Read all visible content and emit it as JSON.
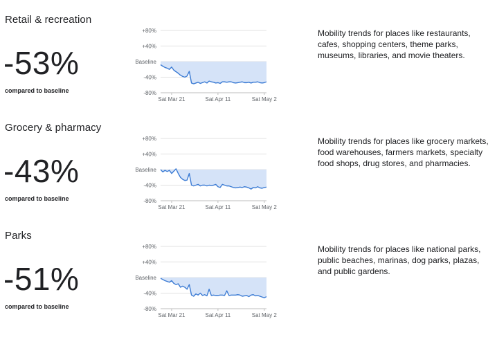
{
  "common": {
    "baseline_label": "compared to baseline",
    "y_ticks": [
      "+80%",
      "+40%",
      "Baseline",
      "-40%",
      "-80%"
    ],
    "x_ticks": [
      "Sat Mar 21",
      "Sat Apr 11",
      "Sat May 2"
    ],
    "line_color": "#3b7bd4",
    "fill_color": "#d5e3f8"
  },
  "sections": [
    {
      "title": "Retail & recreation",
      "value": "-53%",
      "description": "Mobility trends for places like restaurants, cafes, shopping centers, theme parks, museums, libraries, and movie theaters."
    },
    {
      "title": "Grocery & pharmacy",
      "value": "-43%",
      "description": "Mobility trends for places like grocery markets, food warehouses, farmers markets, specialty food shops, drug stores, and pharmacies."
    },
    {
      "title": "Parks",
      "value": "-51%",
      "description": "Mobility trends for places like national parks, public beaches, marinas, dog parks, plazas, and public gardens."
    }
  ],
  "chart_data": [
    {
      "type": "line",
      "title": "Retail & recreation",
      "ylim": [
        -80,
        80
      ],
      "x": [
        "Mar 16",
        "Mar 17",
        "Mar 18",
        "Mar 19",
        "Mar 20",
        "Mar 21",
        "Mar 22",
        "Mar 23",
        "Mar 24",
        "Mar 25",
        "Mar 26",
        "Mar 27",
        "Mar 28",
        "Mar 29",
        "Mar 30",
        "Mar 31",
        "Apr 1",
        "Apr 2",
        "Apr 3",
        "Apr 4",
        "Apr 5",
        "Apr 6",
        "Apr 7",
        "Apr 8",
        "Apr 9",
        "Apr 10",
        "Apr 11",
        "Apr 12",
        "Apr 13",
        "Apr 14",
        "Apr 15",
        "Apr 16",
        "Apr 17",
        "Apr 18",
        "Apr 19",
        "Apr 20",
        "Apr 21",
        "Apr 22",
        "Apr 23",
        "Apr 24",
        "Apr 25",
        "Apr 26",
        "Apr 27",
        "Apr 28",
        "Apr 29",
        "Apr 30",
        "May 1",
        "May 2",
        "May 3"
      ],
      "values": [
        -8,
        -12,
        -15,
        -17,
        -20,
        -14,
        -22,
        -26,
        -30,
        -35,
        -38,
        -40,
        -37,
        -25,
        -55,
        -57,
        -55,
        -53,
        -56,
        -54,
        -52,
        -55,
        -50,
        -52,
        -53,
        -55,
        -54,
        -56,
        -52,
        -52,
        -53,
        -52,
        -52,
        -54,
        -55,
        -54,
        -53,
        -52,
        -54,
        -54,
        -53,
        -55,
        -53,
        -53,
        -52,
        -54,
        -55,
        -54,
        -52
      ]
    },
    {
      "type": "line",
      "title": "Grocery & pharmacy",
      "ylim": [
        -80,
        80
      ],
      "x": [
        "Mar 16",
        "Mar 17",
        "Mar 18",
        "Mar 19",
        "Mar 20",
        "Mar 21",
        "Mar 22",
        "Mar 23",
        "Mar 24",
        "Mar 25",
        "Mar 26",
        "Mar 27",
        "Mar 28",
        "Mar 29",
        "Mar 30",
        "Mar 31",
        "Apr 1",
        "Apr 2",
        "Apr 3",
        "Apr 4",
        "Apr 5",
        "Apr 6",
        "Apr 7",
        "Apr 8",
        "Apr 9",
        "Apr 10",
        "Apr 11",
        "Apr 12",
        "Apr 13",
        "Apr 14",
        "Apr 15",
        "Apr 16",
        "Apr 17",
        "Apr 18",
        "Apr 19",
        "Apr 20",
        "Apr 21",
        "Apr 22",
        "Apr 23",
        "Apr 24",
        "Apr 25",
        "Apr 26",
        "Apr 27",
        "Apr 28",
        "Apr 29",
        "Apr 30",
        "May 1",
        "May 2",
        "May 3"
      ],
      "values": [
        0,
        -6,
        -2,
        -5,
        -2,
        -10,
        -4,
        2,
        -10,
        -20,
        -25,
        -28,
        -27,
        -10,
        -40,
        -42,
        -40,
        -38,
        -42,
        -40,
        -40,
        -42,
        -40,
        -41,
        -40,
        -38,
        -44,
        -46,
        -38,
        -40,
        -42,
        -42,
        -44,
        -46,
        -47,
        -46,
        -45,
        -46,
        -44,
        -45,
        -47,
        -50,
        -46,
        -47,
        -44,
        -47,
        -48,
        -46,
        -45
      ]
    },
    {
      "type": "line",
      "title": "Parks",
      "ylim": [
        -80,
        80
      ],
      "x": [
        "Mar 16",
        "Mar 17",
        "Mar 18",
        "Mar 19",
        "Mar 20",
        "Mar 21",
        "Mar 22",
        "Mar 23",
        "Mar 24",
        "Mar 25",
        "Mar 26",
        "Mar 27",
        "Mar 28",
        "Mar 29",
        "Mar 30",
        "Mar 31",
        "Apr 1",
        "Apr 2",
        "Apr 3",
        "Apr 4",
        "Apr 5",
        "Apr 6",
        "Apr 7",
        "Apr 8",
        "Apr 9",
        "Apr 10",
        "Apr 11",
        "Apr 12",
        "Apr 13",
        "Apr 14",
        "Apr 15",
        "Apr 16",
        "Apr 17",
        "Apr 18",
        "Apr 19",
        "Apr 20",
        "Apr 21",
        "Apr 22",
        "Apr 23",
        "Apr 24",
        "Apr 25",
        "Apr 26",
        "Apr 27",
        "Apr 28",
        "Apr 29",
        "Apr 30",
        "May 1",
        "May 2",
        "May 3"
      ],
      "values": [
        -2,
        -5,
        -8,
        -10,
        -12,
        -8,
        -15,
        -18,
        -16,
        -25,
        -22,
        -25,
        -30,
        -18,
        -45,
        -48,
        -42,
        -45,
        -40,
        -46,
        -44,
        -47,
        -30,
        -46,
        -45,
        -46,
        -46,
        -45,
        -45,
        -46,
        -34,
        -46,
        -45,
        -45,
        -45,
        -44,
        -45,
        -48,
        -47,
        -46,
        -49,
        -45,
        -44,
        -47,
        -46,
        -48,
        -50,
        -52,
        -49
      ]
    }
  ]
}
